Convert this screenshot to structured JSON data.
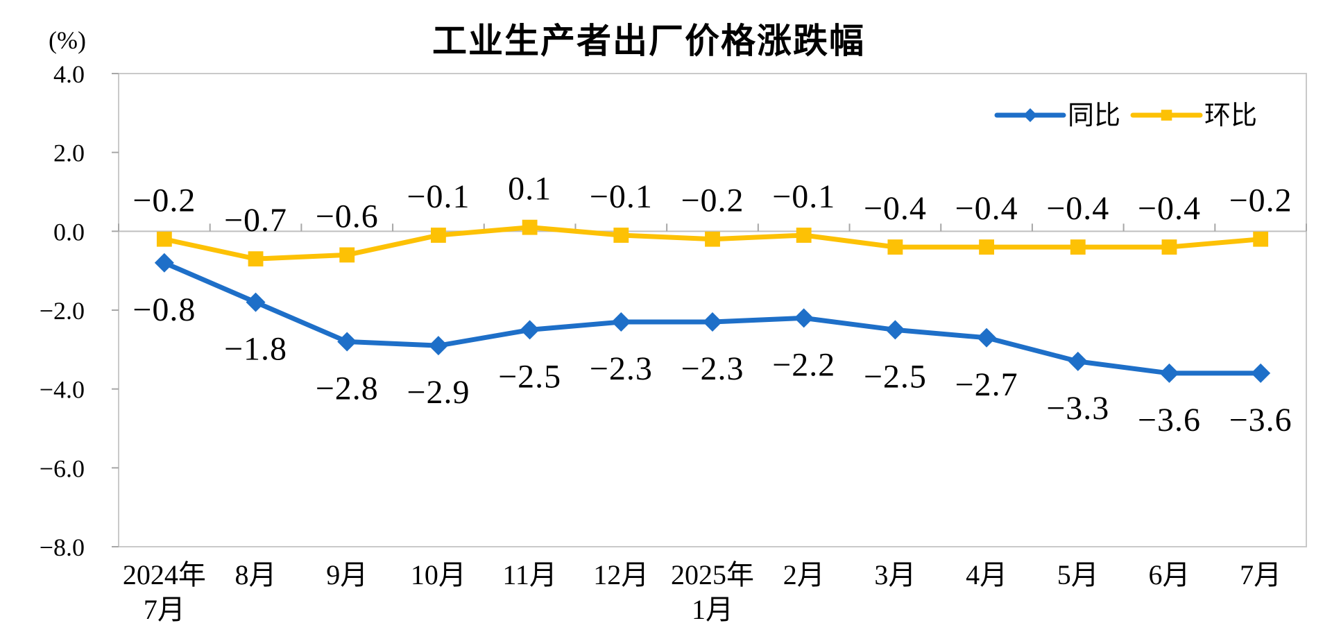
{
  "title": "工业生产者出厂价格涨跌幅",
  "unit_label": "(%)",
  "colors": {
    "yoy_blue": "#1e6fc8",
    "mom_yellow": "#fdc105",
    "plot_border": "#c9c9c9",
    "zero_line": "#bfbfbf",
    "tick": "#a6a6a6",
    "text": "#000000"
  },
  "chart_data": {
    "type": "line",
    "title": "工业生产者出厂价格涨跌幅",
    "ylabel": "(%)",
    "categories": [
      [
        "2024年",
        "7月"
      ],
      [
        "8月"
      ],
      [
        "9月"
      ],
      [
        "10月"
      ],
      [
        "11月"
      ],
      [
        "12月"
      ],
      [
        "2025年",
        "1月"
      ],
      [
        "2月"
      ],
      [
        "3月"
      ],
      [
        "4月"
      ],
      [
        "5月"
      ],
      [
        "6月"
      ],
      [
        "7月"
      ]
    ],
    "ylim": [
      -8,
      4
    ],
    "yticks": [
      4,
      2,
      0,
      -2,
      -4,
      -6,
      -8
    ],
    "ytick_labels": [
      "4.0",
      "2.0",
      "0.0",
      "−2.0",
      "−4.0",
      "−6.0",
      "−8.0"
    ],
    "grid": false,
    "legend_position": "top-right-inside",
    "series": [
      {
        "name": "同比",
        "color": "#1e6fc8",
        "marker": "diamond",
        "label_side": "below",
        "values": [
          -0.8,
          -1.8,
          -2.8,
          -2.9,
          -2.5,
          -2.3,
          -2.3,
          -2.2,
          -2.5,
          -2.7,
          -3.3,
          -3.6,
          -3.6
        ],
        "labels": [
          "−0.8",
          "−1.8",
          "−2.8",
          "−2.9",
          "−2.5",
          "−2.3",
          "−2.3",
          "−2.2",
          "−2.5",
          "−2.7",
          "−3.3",
          "−3.6",
          "−3.6"
        ]
      },
      {
        "name": "环比",
        "color": "#fdc105",
        "marker": "square",
        "label_side": "above",
        "values": [
          -0.2,
          -0.7,
          -0.6,
          -0.1,
          0.1,
          -0.1,
          -0.2,
          -0.1,
          -0.4,
          -0.4,
          -0.4,
          -0.4,
          -0.2
        ],
        "labels": [
          "−0.2",
          "−0.7",
          "−0.6",
          "−0.1",
          "0.1",
          "−0.1",
          "−0.2",
          "−0.1",
          "−0.4",
          "−0.4",
          "−0.4",
          "−0.4",
          "−0.2"
        ]
      }
    ]
  }
}
